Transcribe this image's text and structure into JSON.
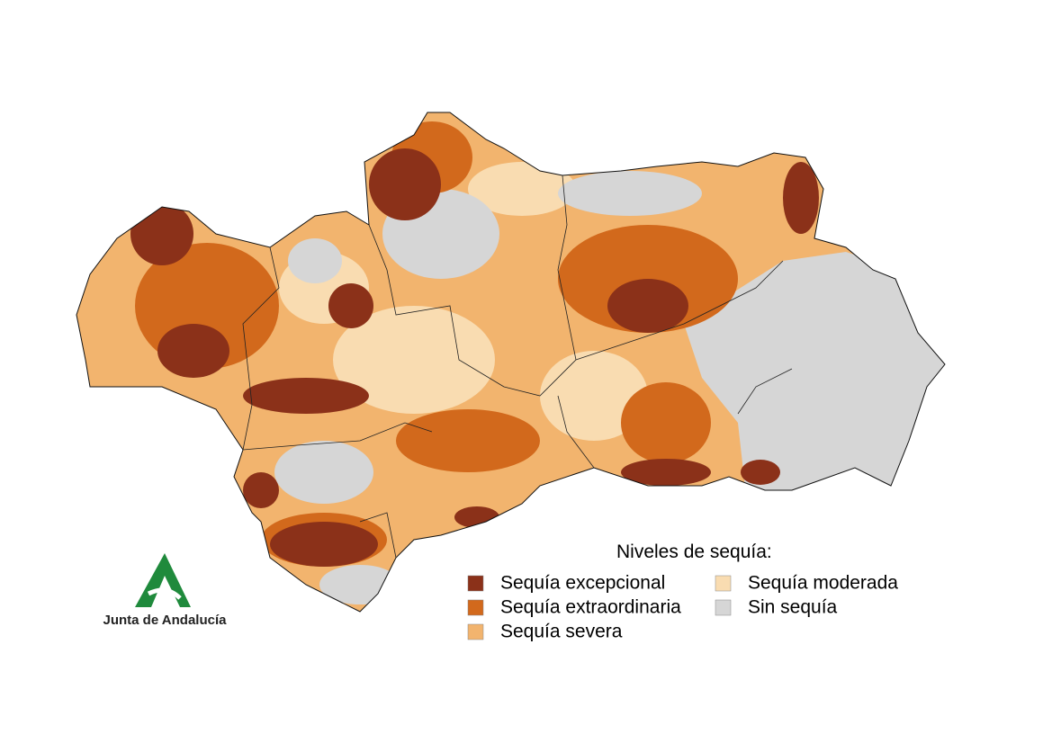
{
  "legend": {
    "title": "Niveles de sequía:",
    "items": [
      {
        "label": "Sequía excepcional",
        "color": "#8b3119"
      },
      {
        "label": "Sequía extraordinaria",
        "color": "#d2691c"
      },
      {
        "label": "Sequía severa",
        "color": "#f2b46e"
      },
      {
        "label": "Sequía moderada",
        "color": "#f9dcb1"
      },
      {
        "label": "Sin sequía",
        "color": "#d6d6d6"
      }
    ]
  },
  "logo": {
    "text": "Junta de Andalucía"
  }
}
